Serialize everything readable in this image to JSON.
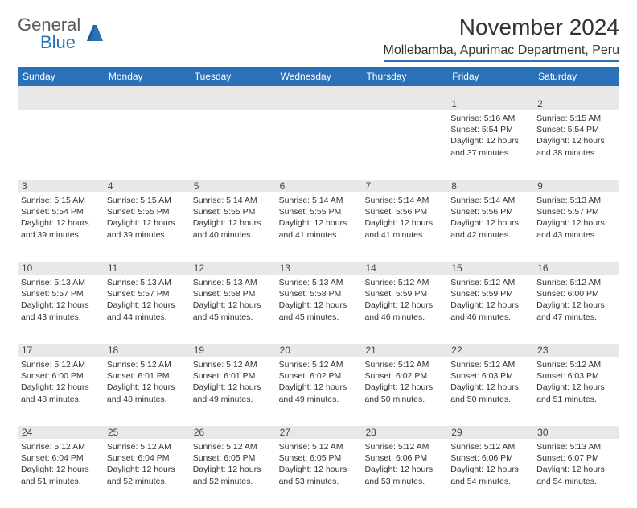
{
  "logo": {
    "text1": "General",
    "text2": "Blue"
  },
  "title": "November 2024",
  "location": "Mollebamba, Apurimac Department, Peru",
  "colors": {
    "header_blue": "#2a71b8",
    "row_bg": "#e8e8e8",
    "text": "#333333",
    "logo_gray": "#5a5a5a"
  },
  "weekdays": [
    "Sunday",
    "Monday",
    "Tuesday",
    "Wednesday",
    "Thursday",
    "Friday",
    "Saturday"
  ],
  "weeks": [
    [
      {
        "n": "",
        "sr": "",
        "ss": "",
        "dl": ""
      },
      {
        "n": "",
        "sr": "",
        "ss": "",
        "dl": ""
      },
      {
        "n": "",
        "sr": "",
        "ss": "",
        "dl": ""
      },
      {
        "n": "",
        "sr": "",
        "ss": "",
        "dl": ""
      },
      {
        "n": "",
        "sr": "",
        "ss": "",
        "dl": ""
      },
      {
        "n": "1",
        "sr": "Sunrise: 5:16 AM",
        "ss": "Sunset: 5:54 PM",
        "dl": "Daylight: 12 hours and 37 minutes."
      },
      {
        "n": "2",
        "sr": "Sunrise: 5:15 AM",
        "ss": "Sunset: 5:54 PM",
        "dl": "Daylight: 12 hours and 38 minutes."
      }
    ],
    [
      {
        "n": "3",
        "sr": "Sunrise: 5:15 AM",
        "ss": "Sunset: 5:54 PM",
        "dl": "Daylight: 12 hours and 39 minutes."
      },
      {
        "n": "4",
        "sr": "Sunrise: 5:15 AM",
        "ss": "Sunset: 5:55 PM",
        "dl": "Daylight: 12 hours and 39 minutes."
      },
      {
        "n": "5",
        "sr": "Sunrise: 5:14 AM",
        "ss": "Sunset: 5:55 PM",
        "dl": "Daylight: 12 hours and 40 minutes."
      },
      {
        "n": "6",
        "sr": "Sunrise: 5:14 AM",
        "ss": "Sunset: 5:55 PM",
        "dl": "Daylight: 12 hours and 41 minutes."
      },
      {
        "n": "7",
        "sr": "Sunrise: 5:14 AM",
        "ss": "Sunset: 5:56 PM",
        "dl": "Daylight: 12 hours and 41 minutes."
      },
      {
        "n": "8",
        "sr": "Sunrise: 5:14 AM",
        "ss": "Sunset: 5:56 PM",
        "dl": "Daylight: 12 hours and 42 minutes."
      },
      {
        "n": "9",
        "sr": "Sunrise: 5:13 AM",
        "ss": "Sunset: 5:57 PM",
        "dl": "Daylight: 12 hours and 43 minutes."
      }
    ],
    [
      {
        "n": "10",
        "sr": "Sunrise: 5:13 AM",
        "ss": "Sunset: 5:57 PM",
        "dl": "Daylight: 12 hours and 43 minutes."
      },
      {
        "n": "11",
        "sr": "Sunrise: 5:13 AM",
        "ss": "Sunset: 5:57 PM",
        "dl": "Daylight: 12 hours and 44 minutes."
      },
      {
        "n": "12",
        "sr": "Sunrise: 5:13 AM",
        "ss": "Sunset: 5:58 PM",
        "dl": "Daylight: 12 hours and 45 minutes."
      },
      {
        "n": "13",
        "sr": "Sunrise: 5:13 AM",
        "ss": "Sunset: 5:58 PM",
        "dl": "Daylight: 12 hours and 45 minutes."
      },
      {
        "n": "14",
        "sr": "Sunrise: 5:12 AM",
        "ss": "Sunset: 5:59 PM",
        "dl": "Daylight: 12 hours and 46 minutes."
      },
      {
        "n": "15",
        "sr": "Sunrise: 5:12 AM",
        "ss": "Sunset: 5:59 PM",
        "dl": "Daylight: 12 hours and 46 minutes."
      },
      {
        "n": "16",
        "sr": "Sunrise: 5:12 AM",
        "ss": "Sunset: 6:00 PM",
        "dl": "Daylight: 12 hours and 47 minutes."
      }
    ],
    [
      {
        "n": "17",
        "sr": "Sunrise: 5:12 AM",
        "ss": "Sunset: 6:00 PM",
        "dl": "Daylight: 12 hours and 48 minutes."
      },
      {
        "n": "18",
        "sr": "Sunrise: 5:12 AM",
        "ss": "Sunset: 6:01 PM",
        "dl": "Daylight: 12 hours and 48 minutes."
      },
      {
        "n": "19",
        "sr": "Sunrise: 5:12 AM",
        "ss": "Sunset: 6:01 PM",
        "dl": "Daylight: 12 hours and 49 minutes."
      },
      {
        "n": "20",
        "sr": "Sunrise: 5:12 AM",
        "ss": "Sunset: 6:02 PM",
        "dl": "Daylight: 12 hours and 49 minutes."
      },
      {
        "n": "21",
        "sr": "Sunrise: 5:12 AM",
        "ss": "Sunset: 6:02 PM",
        "dl": "Daylight: 12 hours and 50 minutes."
      },
      {
        "n": "22",
        "sr": "Sunrise: 5:12 AM",
        "ss": "Sunset: 6:03 PM",
        "dl": "Daylight: 12 hours and 50 minutes."
      },
      {
        "n": "23",
        "sr": "Sunrise: 5:12 AM",
        "ss": "Sunset: 6:03 PM",
        "dl": "Daylight: 12 hours and 51 minutes."
      }
    ],
    [
      {
        "n": "24",
        "sr": "Sunrise: 5:12 AM",
        "ss": "Sunset: 6:04 PM",
        "dl": "Daylight: 12 hours and 51 minutes."
      },
      {
        "n": "25",
        "sr": "Sunrise: 5:12 AM",
        "ss": "Sunset: 6:04 PM",
        "dl": "Daylight: 12 hours and 52 minutes."
      },
      {
        "n": "26",
        "sr": "Sunrise: 5:12 AM",
        "ss": "Sunset: 6:05 PM",
        "dl": "Daylight: 12 hours and 52 minutes."
      },
      {
        "n": "27",
        "sr": "Sunrise: 5:12 AM",
        "ss": "Sunset: 6:05 PM",
        "dl": "Daylight: 12 hours and 53 minutes."
      },
      {
        "n": "28",
        "sr": "Sunrise: 5:12 AM",
        "ss": "Sunset: 6:06 PM",
        "dl": "Daylight: 12 hours and 53 minutes."
      },
      {
        "n": "29",
        "sr": "Sunrise: 5:12 AM",
        "ss": "Sunset: 6:06 PM",
        "dl": "Daylight: 12 hours and 54 minutes."
      },
      {
        "n": "30",
        "sr": "Sunrise: 5:13 AM",
        "ss": "Sunset: 6:07 PM",
        "dl": "Daylight: 12 hours and 54 minutes."
      }
    ]
  ]
}
